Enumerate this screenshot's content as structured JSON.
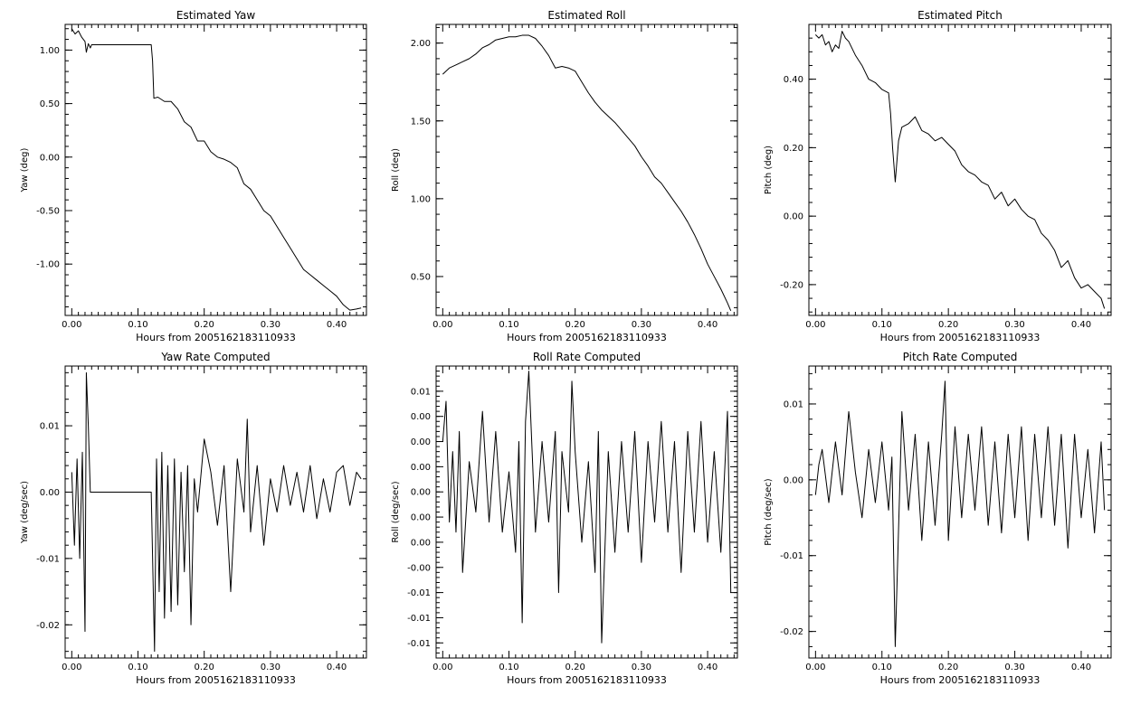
{
  "chart_data": [
    {
      "type": "line",
      "title": "Estimated Yaw",
      "xlabel": "Hours from 2005162183110933",
      "ylabel": "Yaw (deg)",
      "xlim": [
        -0.01,
        0.445
      ],
      "ylim": [
        -1.48,
        1.24
      ],
      "xticks": [
        0.0,
        0.1,
        0.2,
        0.3,
        0.4
      ],
      "xtick_labels": [
        "0.00",
        "0.10",
        "0.20",
        "0.30",
        "0.40"
      ],
      "yticks": [
        1.0,
        0.5,
        0.0,
        -0.5,
        -1.0
      ],
      "ytick_labels": [
        "1.00",
        "0.50",
        "0.00",
        "-0.50",
        "-1.00"
      ],
      "series": [
        {
          "x": [
            0.0,
            0.005,
            0.01,
            0.015,
            0.02,
            0.022,
            0.025,
            0.028,
            0.03,
            0.06,
            0.09,
            0.12,
            0.122,
            0.124,
            0.13,
            0.14,
            0.15,
            0.16,
            0.17,
            0.18,
            0.19,
            0.2,
            0.21,
            0.22,
            0.23,
            0.24,
            0.25,
            0.26,
            0.27,
            0.28,
            0.29,
            0.3,
            0.31,
            0.32,
            0.33,
            0.34,
            0.35,
            0.36,
            0.37,
            0.38,
            0.39,
            0.4,
            0.41,
            0.42,
            0.43,
            0.437
          ],
          "y": [
            1.2,
            1.15,
            1.18,
            1.12,
            1.08,
            0.98,
            1.06,
            1.02,
            1.05,
            1.05,
            1.05,
            1.05,
            0.9,
            0.55,
            0.56,
            0.52,
            0.52,
            0.45,
            0.33,
            0.28,
            0.15,
            0.15,
            0.05,
            0.0,
            -0.02,
            -0.05,
            -0.1,
            -0.25,
            -0.3,
            -0.4,
            -0.5,
            -0.55,
            -0.65,
            -0.75,
            -0.85,
            -0.95,
            -1.05,
            -1.1,
            -1.15,
            -1.2,
            -1.25,
            -1.3,
            -1.38,
            -1.43,
            -1.42,
            -1.41
          ]
        }
      ]
    },
    {
      "type": "line",
      "title": "Estimated Roll",
      "xlabel": "Hours from 2005162183110933",
      "ylabel": "Roll (deg)",
      "xlim": [
        -0.01,
        0.445
      ],
      "ylim": [
        0.25,
        2.12
      ],
      "xticks": [
        0.0,
        0.1,
        0.2,
        0.3,
        0.4
      ],
      "xtick_labels": [
        "0.00",
        "0.10",
        "0.20",
        "0.30",
        "0.40"
      ],
      "yticks": [
        2.0,
        1.5,
        1.0,
        0.5
      ],
      "ytick_labels": [
        "2.00",
        "1.50",
        "1.00",
        "0.50"
      ],
      "series": [
        {
          "x": [
            0.0,
            0.01,
            0.02,
            0.03,
            0.04,
            0.05,
            0.06,
            0.07,
            0.08,
            0.09,
            0.1,
            0.11,
            0.12,
            0.13,
            0.14,
            0.15,
            0.16,
            0.17,
            0.18,
            0.19,
            0.2,
            0.21,
            0.22,
            0.23,
            0.24,
            0.25,
            0.26,
            0.27,
            0.28,
            0.29,
            0.3,
            0.31,
            0.32,
            0.33,
            0.34,
            0.35,
            0.36,
            0.37,
            0.38,
            0.39,
            0.4,
            0.41,
            0.42,
            0.43,
            0.435
          ],
          "y": [
            1.8,
            1.84,
            1.86,
            1.88,
            1.9,
            1.93,
            1.97,
            1.99,
            2.02,
            2.03,
            2.04,
            2.04,
            2.05,
            2.05,
            2.03,
            1.98,
            1.92,
            1.84,
            1.85,
            1.84,
            1.82,
            1.75,
            1.68,
            1.62,
            1.57,
            1.53,
            1.49,
            1.44,
            1.39,
            1.34,
            1.27,
            1.21,
            1.14,
            1.1,
            1.04,
            0.98,
            0.92,
            0.85,
            0.77,
            0.68,
            0.58,
            0.5,
            0.42,
            0.33,
            0.28
          ]
        }
      ]
    },
    {
      "type": "line",
      "title": "Estimated Pitch",
      "xlabel": "Hours from 2005162183110933",
      "ylabel": "Pitch (deg)",
      "xlim": [
        -0.01,
        0.445
      ],
      "ylim": [
        -0.29,
        0.56
      ],
      "xticks": [
        0.0,
        0.1,
        0.2,
        0.3,
        0.4
      ],
      "xtick_labels": [
        "0.00",
        "0.10",
        "0.20",
        "0.30",
        "0.40"
      ],
      "yticks": [
        0.4,
        0.2,
        0.0,
        -0.2
      ],
      "ytick_labels": [
        "0.40",
        "0.20",
        "0.00",
        "-0.20"
      ],
      "series": [
        {
          "x": [
            0.0,
            0.005,
            0.01,
            0.015,
            0.02,
            0.025,
            0.03,
            0.035,
            0.04,
            0.045,
            0.05,
            0.06,
            0.07,
            0.08,
            0.09,
            0.1,
            0.11,
            0.113,
            0.116,
            0.12,
            0.125,
            0.13,
            0.14,
            0.15,
            0.16,
            0.17,
            0.18,
            0.19,
            0.2,
            0.21,
            0.22,
            0.23,
            0.24,
            0.25,
            0.26,
            0.27,
            0.28,
            0.29,
            0.3,
            0.31,
            0.32,
            0.33,
            0.34,
            0.35,
            0.36,
            0.37,
            0.38,
            0.39,
            0.4,
            0.41,
            0.42,
            0.43,
            0.435
          ],
          "y": [
            0.53,
            0.52,
            0.53,
            0.5,
            0.51,
            0.48,
            0.5,
            0.49,
            0.54,
            0.52,
            0.51,
            0.47,
            0.44,
            0.4,
            0.39,
            0.37,
            0.36,
            0.3,
            0.2,
            0.1,
            0.22,
            0.26,
            0.27,
            0.29,
            0.25,
            0.24,
            0.22,
            0.23,
            0.21,
            0.19,
            0.15,
            0.13,
            0.12,
            0.1,
            0.09,
            0.05,
            0.07,
            0.03,
            0.05,
            0.02,
            0.0,
            -0.01,
            -0.05,
            -0.07,
            -0.1,
            -0.15,
            -0.13,
            -0.18,
            -0.21,
            -0.2,
            -0.22,
            -0.24,
            -0.27
          ]
        }
      ]
    },
    {
      "type": "line",
      "title": "Yaw Rate Computed",
      "xlabel": "Hours from 2005162183110933",
      "ylabel": "Yaw (deg/sec)",
      "xlim": [
        -0.01,
        0.445
      ],
      "ylim": [
        -0.025,
        0.019
      ],
      "xticks": [
        0.0,
        0.1,
        0.2,
        0.3,
        0.4
      ],
      "xtick_labels": [
        "0.00",
        "0.10",
        "0.20",
        "0.30",
        "0.40"
      ],
      "yticks": [
        0.01,
        0.0,
        -0.01,
        -0.02
      ],
      "ytick_labels": [
        "0.01",
        "0.00",
        "-0.01",
        "-0.02"
      ],
      "series": [
        {
          "x": [
            0.0,
            0.004,
            0.008,
            0.012,
            0.016,
            0.02,
            0.022,
            0.025,
            0.028,
            0.03,
            0.06,
            0.09,
            0.12,
            0.125,
            0.128,
            0.132,
            0.136,
            0.14,
            0.145,
            0.15,
            0.155,
            0.16,
            0.165,
            0.17,
            0.175,
            0.18,
            0.185,
            0.19,
            0.2,
            0.21,
            0.22,
            0.23,
            0.24,
            0.25,
            0.26,
            0.265,
            0.27,
            0.28,
            0.29,
            0.3,
            0.31,
            0.32,
            0.33,
            0.34,
            0.35,
            0.36,
            0.37,
            0.38,
            0.39,
            0.4,
            0.41,
            0.42,
            0.43,
            0.437
          ],
          "y": [
            0.003,
            -0.008,
            0.005,
            -0.01,
            0.006,
            -0.021,
            0.018,
            0.01,
            0.0,
            0.0,
            0.0,
            0.0,
            0.0,
            -0.024,
            0.005,
            -0.015,
            0.006,
            -0.019,
            0.004,
            -0.018,
            0.005,
            -0.017,
            0.003,
            -0.012,
            0.004,
            -0.02,
            0.002,
            -0.003,
            0.008,
            0.003,
            -0.005,
            0.004,
            -0.015,
            0.005,
            -0.003,
            0.011,
            -0.006,
            0.004,
            -0.008,
            0.002,
            -0.003,
            0.004,
            -0.002,
            0.003,
            -0.003,
            0.004,
            -0.004,
            0.002,
            -0.003,
            0.003,
            0.004,
            -0.002,
            0.003,
            0.002
          ]
        }
      ]
    },
    {
      "type": "line",
      "title": "Roll Rate Computed",
      "xlabel": "Hours from 2005162183110933",
      "ylabel": "Roll (deg/sec)",
      "xlim": [
        -0.01,
        0.445
      ],
      "ylim": [
        -0.0165,
        0.0125
      ],
      "xticks": [
        0.0,
        0.1,
        0.2,
        0.3,
        0.4
      ],
      "xtick_labels": [
        "0.00",
        "0.10",
        "0.20",
        "0.30",
        "0.40"
      ],
      "yticks": [
        0.01,
        0.0075,
        0.005,
        0.0025,
        0.0,
        -0.0025,
        -0.005,
        -0.0075,
        -0.01,
        -0.0125,
        -0.015
      ],
      "ytick_labels": [
        "0.01",
        "0.00",
        "0.00",
        "0.00",
        "0.00",
        "0.00",
        "0.00",
        "-0.00",
        "-0.01",
        "-0.01",
        "-0.01"
      ],
      "series": [
        {
          "x": [
            0.0,
            0.005,
            0.01,
            0.015,
            0.02,
            0.025,
            0.03,
            0.04,
            0.05,
            0.06,
            0.07,
            0.08,
            0.09,
            0.1,
            0.11,
            0.115,
            0.12,
            0.125,
            0.13,
            0.14,
            0.15,
            0.16,
            0.17,
            0.175,
            0.18,
            0.19,
            0.195,
            0.2,
            0.21,
            0.22,
            0.23,
            0.235,
            0.24,
            0.25,
            0.26,
            0.27,
            0.28,
            0.29,
            0.3,
            0.31,
            0.32,
            0.33,
            0.34,
            0.35,
            0.36,
            0.37,
            0.38,
            0.39,
            0.4,
            0.41,
            0.42,
            0.43,
            0.435
          ],
          "y": [
            0.005,
            0.009,
            -0.003,
            0.004,
            -0.004,
            0.006,
            -0.008,
            0.003,
            -0.002,
            0.008,
            -0.003,
            0.006,
            -0.004,
            0.002,
            -0.006,
            0.005,
            -0.013,
            0.007,
            0.012,
            -0.004,
            0.005,
            -0.003,
            0.006,
            -0.01,
            0.004,
            -0.002,
            0.011,
            0.004,
            -0.005,
            0.003,
            -0.008,
            0.006,
            -0.015,
            0.004,
            -0.006,
            0.005,
            -0.004,
            0.006,
            -0.007,
            0.005,
            -0.003,
            0.007,
            -0.004,
            0.005,
            -0.008,
            0.006,
            -0.004,
            0.007,
            -0.005,
            0.004,
            -0.006,
            0.008,
            -0.01
          ]
        }
      ]
    },
    {
      "type": "line",
      "title": "Pitch Rate Computed",
      "xlabel": "Hours from 2005162183110933",
      "ylabel": "Pitch (deg/sec)",
      "xlim": [
        -0.01,
        0.445
      ],
      "ylim": [
        -0.0235,
        0.015
      ],
      "xticks": [
        0.0,
        0.1,
        0.2,
        0.3,
        0.4
      ],
      "xtick_labels": [
        "0.00",
        "0.10",
        "0.20",
        "0.30",
        "0.40"
      ],
      "yticks": [
        0.01,
        0.0,
        -0.01,
        -0.02
      ],
      "ytick_labels": [
        "0.01",
        "0.00",
        "-0.01",
        "-0.02"
      ],
      "series": [
        {
          "x": [
            0.0,
            0.005,
            0.01,
            0.02,
            0.03,
            0.04,
            0.05,
            0.06,
            0.07,
            0.08,
            0.09,
            0.1,
            0.11,
            0.115,
            0.12,
            0.13,
            0.14,
            0.15,
            0.16,
            0.17,
            0.18,
            0.19,
            0.195,
            0.2,
            0.21,
            0.22,
            0.23,
            0.24,
            0.25,
            0.26,
            0.27,
            0.28,
            0.29,
            0.3,
            0.31,
            0.32,
            0.33,
            0.34,
            0.35,
            0.36,
            0.37,
            0.38,
            0.39,
            0.4,
            0.41,
            0.42,
            0.43,
            0.435
          ],
          "y": [
            -0.002,
            0.002,
            0.004,
            -0.003,
            0.005,
            -0.002,
            0.009,
            0.001,
            -0.005,
            0.004,
            -0.003,
            0.005,
            -0.004,
            0.003,
            -0.022,
            0.009,
            -0.004,
            0.006,
            -0.008,
            0.005,
            -0.006,
            0.006,
            0.013,
            -0.008,
            0.007,
            -0.005,
            0.006,
            -0.004,
            0.007,
            -0.006,
            0.005,
            -0.007,
            0.006,
            -0.005,
            0.007,
            -0.008,
            0.006,
            -0.005,
            0.007,
            -0.006,
            0.006,
            -0.009,
            0.006,
            -0.005,
            0.004,
            -0.007,
            0.005,
            -0.004
          ]
        }
      ]
    }
  ]
}
